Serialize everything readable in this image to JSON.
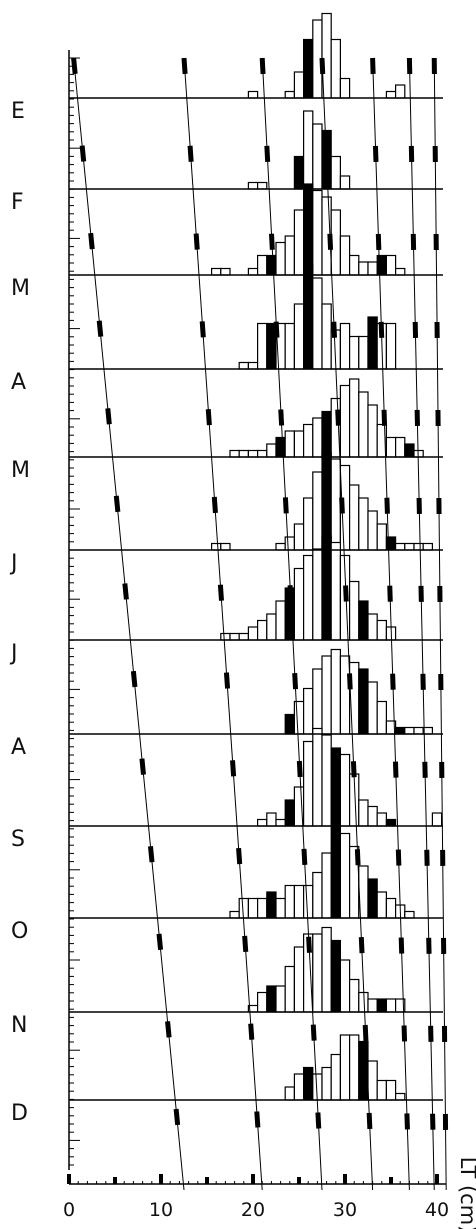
{
  "chart_data": {
    "type": "bar",
    "subtype": "monthly length-frequency histograms with modal progression (cohort growth) lines",
    "xlabel": "LT (cm)",
    "xlim": [
      0,
      41
    ],
    "xticks": [
      0,
      10,
      20,
      30,
      40
    ],
    "months": [
      "E",
      "F",
      "M",
      "A",
      "M",
      "J",
      "J",
      "A",
      "S",
      "O",
      "N",
      "D"
    ],
    "bar_fill": "#ffffff",
    "bar_stroke": "#000000",
    "modal_fill": "#000000",
    "series": [
      {
        "month": "E",
        "bins": [
          [
            20,
            1
          ],
          [
            24,
            1
          ],
          [
            25,
            4
          ],
          [
            26,
            9
          ],
          [
            27,
            12
          ],
          [
            28,
            13
          ],
          [
            29,
            9
          ],
          [
            30,
            3
          ],
          [
            35,
            1
          ],
          [
            36,
            2
          ]
        ],
        "modal": [
          26
        ]
      },
      {
        "month": "F",
        "bins": [
          [
            20,
            1
          ],
          [
            21,
            1
          ],
          [
            25,
            5
          ],
          [
            26,
            12
          ],
          [
            27,
            10
          ],
          [
            28,
            9
          ],
          [
            29,
            5
          ],
          [
            30,
            2
          ]
        ],
        "modal": [
          25,
          28
        ]
      },
      {
        "month": "M",
        "bins": [
          [
            16,
            1
          ],
          [
            17,
            1
          ],
          [
            20,
            1
          ],
          [
            21,
            3
          ],
          [
            22,
            3
          ],
          [
            23,
            5
          ],
          [
            24,
            6
          ],
          [
            25,
            10
          ],
          [
            26,
            14
          ],
          [
            27,
            13
          ],
          [
            28,
            12
          ],
          [
            29,
            10
          ],
          [
            30,
            6
          ],
          [
            31,
            3
          ],
          [
            32,
            2
          ],
          [
            33,
            2
          ],
          [
            34,
            3
          ],
          [
            35,
            3
          ],
          [
            36,
            1
          ]
        ],
        "modal": [
          22,
          26,
          34
        ]
      },
      {
        "month": "A",
        "bins": [
          [
            19,
            1
          ],
          [
            20,
            1
          ],
          [
            21,
            7
          ],
          [
            22,
            7
          ],
          [
            23,
            7
          ],
          [
            24,
            7
          ],
          [
            25,
            10
          ],
          [
            26,
            16
          ],
          [
            27,
            14
          ],
          [
            28,
            10
          ],
          [
            29,
            6
          ],
          [
            30,
            7
          ],
          [
            31,
            5
          ],
          [
            32,
            5
          ],
          [
            33,
            8
          ],
          [
            34,
            7
          ],
          [
            35,
            7
          ]
        ],
        "modal": [
          22,
          26,
          33
        ]
      },
      {
        "month": "M",
        "bins": [
          [
            18,
            1
          ],
          [
            19,
            1
          ],
          [
            20,
            1
          ],
          [
            21,
            1
          ],
          [
            22,
            2
          ],
          [
            23,
            3
          ],
          [
            24,
            4
          ],
          [
            25,
            4
          ],
          [
            26,
            5
          ],
          [
            27,
            6
          ],
          [
            28,
            7
          ],
          [
            29,
            9
          ],
          [
            30,
            11
          ],
          [
            31,
            12
          ],
          [
            32,
            10
          ],
          [
            33,
            8
          ],
          [
            34,
            5
          ],
          [
            35,
            3
          ],
          [
            36,
            3
          ],
          [
            37,
            2
          ],
          [
            38,
            1
          ]
        ],
        "modal": [
          23,
          28,
          37
        ]
      },
      {
        "month": "J",
        "bins": [
          [
            16,
            1
          ],
          [
            17,
            1
          ],
          [
            23,
            1
          ],
          [
            24,
            2
          ],
          [
            25,
            4
          ],
          [
            26,
            8
          ],
          [
            27,
            12
          ],
          [
            28,
            15
          ],
          [
            29,
            14
          ],
          [
            30,
            13
          ],
          [
            31,
            10
          ],
          [
            32,
            8
          ],
          [
            33,
            6
          ],
          [
            34,
            4
          ],
          [
            35,
            2
          ],
          [
            36,
            1
          ],
          [
            37,
            1
          ],
          [
            38,
            1
          ],
          [
            39,
            1
          ]
        ],
        "modal": [
          28,
          35
        ]
      },
      {
        "month": "J",
        "bins": [
          [
            17,
            1
          ],
          [
            18,
            1
          ],
          [
            19,
            1
          ],
          [
            20,
            2
          ],
          [
            21,
            3
          ],
          [
            22,
            4
          ],
          [
            23,
            6
          ],
          [
            24,
            8
          ],
          [
            25,
            11
          ],
          [
            26,
            13
          ],
          [
            27,
            14
          ],
          [
            28,
            16
          ],
          [
            29,
            15
          ],
          [
            30,
            13
          ],
          [
            31,
            9
          ],
          [
            32,
            6
          ],
          [
            33,
            4
          ],
          [
            34,
            3
          ],
          [
            35,
            2
          ]
        ],
        "modal": [
          24,
          28,
          32
        ]
      },
      {
        "month": "A",
        "bins": [
          [
            24,
            3
          ],
          [
            25,
            5
          ],
          [
            26,
            7
          ],
          [
            27,
            10
          ],
          [
            28,
            12
          ],
          [
            29,
            13
          ],
          [
            30,
            12
          ],
          [
            31,
            11
          ],
          [
            32,
            10
          ],
          [
            33,
            8
          ],
          [
            34,
            5
          ],
          [
            35,
            2
          ],
          [
            36,
            1
          ],
          [
            37,
            1
          ],
          [
            38,
            1
          ],
          [
            39,
            1
          ]
        ],
        "modal": [
          24,
          32,
          36
        ]
      },
      {
        "month": "S",
        "bins": [
          [
            21,
            1
          ],
          [
            22,
            2
          ],
          [
            23,
            1
          ],
          [
            24,
            4
          ],
          [
            25,
            6
          ],
          [
            26,
            13
          ],
          [
            27,
            15
          ],
          [
            28,
            14
          ],
          [
            29,
            12
          ],
          [
            30,
            11
          ],
          [
            31,
            8
          ],
          [
            32,
            4
          ],
          [
            33,
            3
          ],
          [
            34,
            2
          ],
          [
            35,
            1
          ],
          [
            40,
            2
          ]
        ],
        "modal": [
          24,
          29,
          35
        ]
      },
      {
        "month": "O",
        "bins": [
          [
            18,
            1
          ],
          [
            19,
            3
          ],
          [
            20,
            3
          ],
          [
            21,
            3
          ],
          [
            22,
            4
          ],
          [
            23,
            3
          ],
          [
            24,
            5
          ],
          [
            25,
            5
          ],
          [
            26,
            5
          ],
          [
            27,
            7
          ],
          [
            28,
            10
          ],
          [
            29,
            14
          ],
          [
            30,
            13
          ],
          [
            31,
            11
          ],
          [
            32,
            8
          ],
          [
            33,
            6
          ],
          [
            34,
            4
          ],
          [
            35,
            3
          ],
          [
            36,
            2
          ],
          [
            37,
            1
          ]
        ],
        "modal": [
          22,
          29,
          33
        ]
      },
      {
        "month": "N",
        "bins": [
          [
            20,
            1
          ],
          [
            21,
            3
          ],
          [
            22,
            4
          ],
          [
            23,
            4
          ],
          [
            24,
            7
          ],
          [
            25,
            10
          ],
          [
            26,
            12
          ],
          [
            27,
            12
          ],
          [
            28,
            13
          ],
          [
            29,
            11
          ],
          [
            30,
            8
          ],
          [
            31,
            5
          ],
          [
            32,
            3
          ],
          [
            33,
            2
          ],
          [
            34,
            2
          ],
          [
            35,
            2
          ],
          [
            36,
            2
          ]
        ],
        "modal": [
          22,
          29,
          34
        ]
      },
      {
        "month": "D",
        "bins": [
          [
            24,
            2
          ],
          [
            25,
            4
          ],
          [
            26,
            5
          ],
          [
            27,
            4
          ],
          [
            28,
            5
          ],
          [
            29,
            7
          ],
          [
            30,
            10
          ],
          [
            31,
            10
          ],
          [
            32,
            9
          ],
          [
            33,
            6
          ],
          [
            34,
            3
          ],
          [
            35,
            3
          ],
          [
            36,
            1
          ]
        ],
        "modal": [
          26,
          32
        ]
      }
    ],
    "growth_curves": [
      {
        "x_start": 0.5,
        "x_end": 12.5
      },
      {
        "x_start": 12.5,
        "x_end": 21
      },
      {
        "x_start": 21,
        "x_end": 27.5
      },
      {
        "x_start": 27.5,
        "x_end": 33
      },
      {
        "x_start": 33,
        "x_end": 37
      },
      {
        "x_start": 37,
        "x_end": 39.7
      },
      {
        "x_start": 39.7,
        "x_end": 41
      }
    ]
  }
}
